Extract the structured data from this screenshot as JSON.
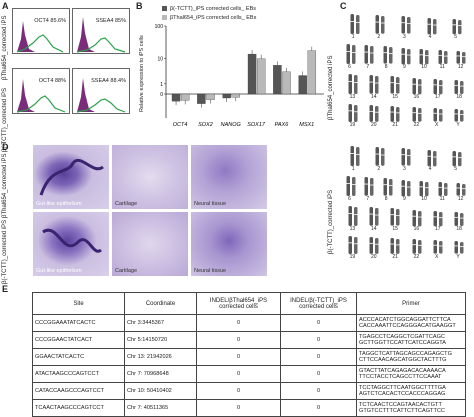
{
  "panels": {
    "A": "A",
    "B": "B",
    "C": "C",
    "D": "D",
    "E": "E"
  },
  "panel_a": {
    "row_labels": [
      "βThal654_corrected iPS",
      "β(-TCTT)_corrected iPS"
    ],
    "plots": [
      {
        "marker": "OCT4",
        "percent": "85.6%"
      },
      {
        "marker": "SSEA4",
        "percent": "85%"
      },
      {
        "marker": "OCT4",
        "percent": "88%"
      },
      {
        "marker": "SSEA4",
        "percent": "88.4%"
      }
    ],
    "colors": {
      "fill": "#7a2c7a",
      "line": "#2aa14a"
    }
  },
  "panel_b": {
    "chart_data": {
      "type": "bar",
      "categories": [
        "OCT4",
        "SOX2",
        "NANOG",
        "SOX17",
        "PAX6",
        "MSX1"
      ],
      "series": [
        {
          "name": "β(-TCTT)_iPS corrected cells_ EBs",
          "values": [
            -0.45,
            -0.6,
            -0.25,
            14,
            6,
            2.5
          ]
        },
        {
          "name": "βThal654_iPS corrected cells_ EBs",
          "values": [
            -0.4,
            -0.35,
            -0.2,
            10,
            3.5,
            18
          ]
        }
      ],
      "ylabel": "Relative expression to iPS cells",
      "yticks": [
        "0",
        "1",
        "10",
        "100"
      ],
      "colors": [
        "#555555",
        "#b9b9b9"
      ]
    }
  },
  "panel_c": {
    "top_label": "βThal654_corrected iPS",
    "bottom_label": "β(-TCTT)_corrected iPS",
    "rows": [
      [
        "1",
        "2",
        "3",
        "4",
        "5"
      ],
      [
        "6",
        "7",
        "8",
        "9",
        "10",
        "11",
        "12"
      ],
      [
        "13",
        "14",
        "15",
        "16",
        "17",
        "18"
      ],
      [
        "19",
        "20",
        "21",
        "22",
        "X",
        "Y"
      ]
    ]
  },
  "panel_d": {
    "row_labels": [
      "βThal654_corrected iPS",
      "β(-TCTT)_corrected iPS"
    ],
    "tissues": [
      "Gut-like epithelium",
      "Cartilage",
      "Neural tissue"
    ]
  },
  "panel_e": {
    "headers": [
      "Site",
      "Coordinate",
      "INDEL/βThal654_iPS corrected cells",
      "INDEL/β(-TCTT)_iPS corrected cells",
      "Primer"
    ],
    "rows": [
      {
        "site": "CCCGGAAATATCACTC",
        "coord": "Chr 3:3445367",
        "a": "0",
        "b": "0",
        "primer": [
          "ACCCACATCTGGCAGGATTCTTCA",
          "CACCAAATTCCAGGGACATGAAGGT"
        ]
      },
      {
        "site": "CCCGGAACTATCACT",
        "coord": "Chr 5:14150720",
        "a": "0",
        "b": "0",
        "primer": [
          "TGAGCCTCAGGCTCGATTCAGC",
          "GCTTGGTTCCATTCATCCAGGTA"
        ]
      },
      {
        "site": "GGAACTATCACTC",
        "coord": "Chr 13: 21942026",
        "a": "0",
        "b": "0",
        "primer": [
          "TAGGCTCATTAGCAGCCAGAGCTG",
          "CTTCCAACAGCATGGCTACTTTG"
        ]
      },
      {
        "site": "ATACTAAGCCCAGTCCT",
        "coord": "Chr 7: 70968648",
        "a": "0",
        "b": "0",
        "primer": [
          "GTACTTATCAGAGACACAAAACA",
          "TTCCTACCTCAGCCTTCCAAAT"
        ]
      },
      {
        "site": "CATACCAAGCCCAGTCCT",
        "coord": "Chr 10: 50410402",
        "a": "0",
        "b": "0",
        "primer": [
          "TCCTAGGCTTCAATGGCTTTTGA",
          "AGTCTCACACTCCACCCAGGAG"
        ]
      },
      {
        "site": "TCAACTAAGCCCAGTCCT",
        "coord": "Chr 7: 40511365",
        "a": "0",
        "b": "0",
        "primer": [
          "TCTCAACTCCAGTAACACTGTT",
          "GTGTCCTTTCATTCTTCAGTTCC"
        ]
      }
    ]
  }
}
